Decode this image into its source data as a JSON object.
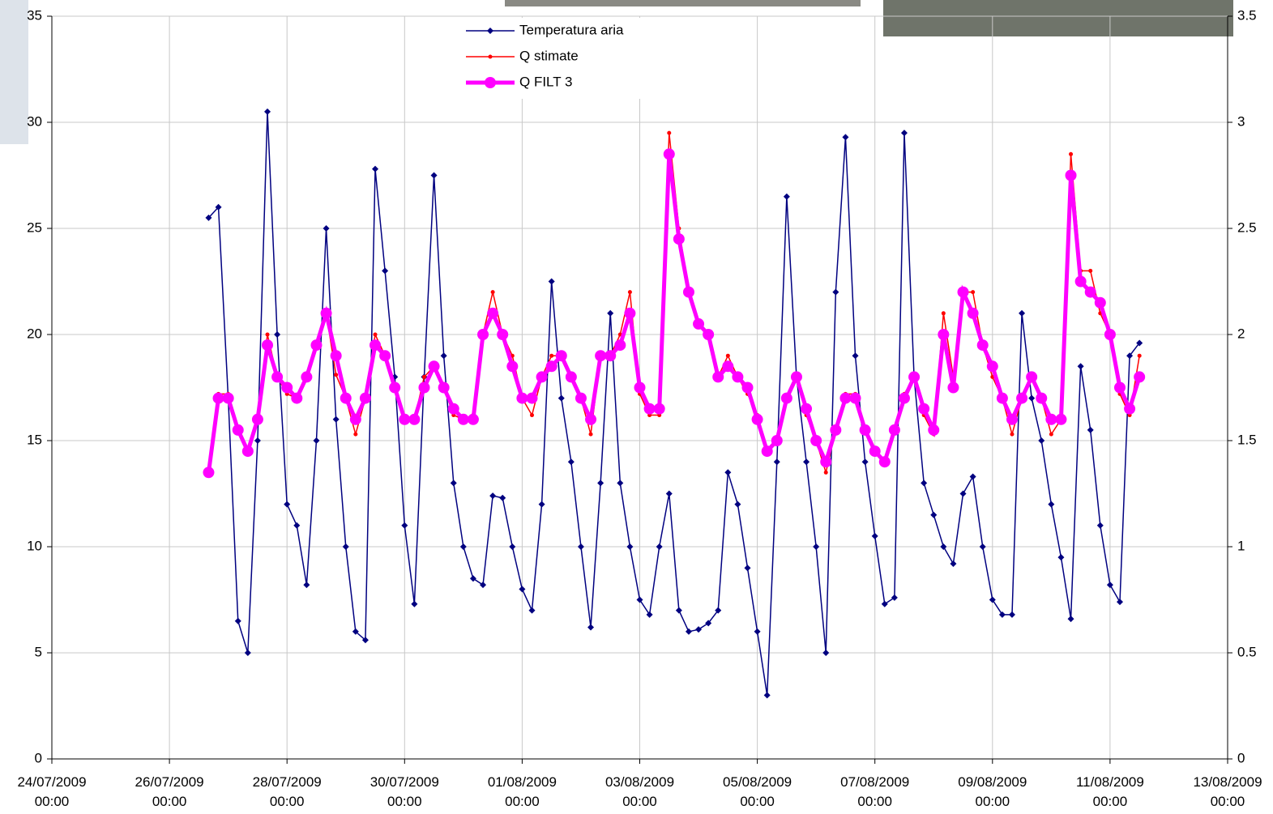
{
  "chart_data": {
    "type": "line",
    "x": [
      "2009-07-26T16:00",
      "2009-07-26T20:00",
      "2009-07-27T00:00",
      "2009-07-27T04:00",
      "2009-07-27T08:00",
      "2009-07-27T12:00",
      "2009-07-27T16:00",
      "2009-07-27T20:00",
      "2009-07-28T00:00",
      "2009-07-28T04:00",
      "2009-07-28T08:00",
      "2009-07-28T12:00",
      "2009-07-28T16:00",
      "2009-07-28T20:00",
      "2009-07-29T00:00",
      "2009-07-29T04:00",
      "2009-07-29T08:00",
      "2009-07-29T12:00",
      "2009-07-29T16:00",
      "2009-07-29T20:00",
      "2009-07-30T00:00",
      "2009-07-30T04:00",
      "2009-07-30T08:00",
      "2009-07-30T12:00",
      "2009-07-30T16:00",
      "2009-07-30T20:00",
      "2009-07-31T00:00",
      "2009-07-31T04:00",
      "2009-07-31T08:00",
      "2009-07-31T12:00",
      "2009-07-31T16:00",
      "2009-07-31T20:00",
      "2009-08-01T00:00",
      "2009-08-01T04:00",
      "2009-08-01T08:00",
      "2009-08-01T12:00",
      "2009-08-01T16:00",
      "2009-08-01T20:00",
      "2009-08-02T00:00",
      "2009-08-02T04:00",
      "2009-08-02T08:00",
      "2009-08-02T12:00",
      "2009-08-02T16:00",
      "2009-08-02T20:00",
      "2009-08-03T00:00",
      "2009-08-03T04:00",
      "2009-08-03T08:00",
      "2009-08-03T12:00",
      "2009-08-03T16:00",
      "2009-08-03T20:00",
      "2009-08-04T00:00",
      "2009-08-04T04:00",
      "2009-08-04T08:00",
      "2009-08-04T12:00",
      "2009-08-04T16:00",
      "2009-08-04T20:00",
      "2009-08-05T00:00",
      "2009-08-05T04:00",
      "2009-08-05T08:00",
      "2009-08-05T12:00",
      "2009-08-05T16:00",
      "2009-08-05T20:00",
      "2009-08-06T00:00",
      "2009-08-06T04:00",
      "2009-08-06T08:00",
      "2009-08-06T12:00",
      "2009-08-06T16:00",
      "2009-08-06T20:00",
      "2009-08-07T00:00",
      "2009-08-07T04:00",
      "2009-08-07T08:00",
      "2009-08-07T12:00",
      "2009-08-07T16:00",
      "2009-08-07T20:00",
      "2009-08-08T00:00",
      "2009-08-08T04:00",
      "2009-08-08T08:00",
      "2009-08-08T12:00",
      "2009-08-08T16:00",
      "2009-08-08T20:00",
      "2009-08-09T00:00",
      "2009-08-09T04:00",
      "2009-08-09T08:00",
      "2009-08-09T12:00",
      "2009-08-09T16:00",
      "2009-08-09T20:00",
      "2009-08-10T00:00",
      "2009-08-10T04:00",
      "2009-08-10T08:00",
      "2009-08-10T12:00",
      "2009-08-10T16:00",
      "2009-08-10T20:00",
      "2009-08-11T00:00",
      "2009-08-11T04:00",
      "2009-08-11T08:00",
      "2009-08-11T12:00"
    ],
    "series": [
      {
        "name": "Temperatura aria",
        "color": "#000080",
        "marker": "diamond",
        "values": [
          25.5,
          26.0,
          17,
          6.5,
          5.0,
          15,
          30.5,
          20,
          12,
          11,
          8.2,
          15,
          25,
          16,
          10,
          6,
          5.6,
          27.8,
          23,
          18,
          11,
          7.3,
          18,
          27.5,
          19,
          13,
          10,
          8.5,
          8.2,
          12.4,
          12.3,
          10,
          8,
          7,
          12,
          22.5,
          17,
          14,
          10,
          6.2,
          13,
          21,
          13,
          10,
          7.5,
          6.8,
          10,
          12.5,
          7,
          6,
          6.1,
          6.4,
          7,
          13.5,
          12,
          9,
          6,
          3,
          14,
          26.5,
          18,
          14,
          10,
          5,
          22,
          29.3,
          19,
          14,
          10.5,
          7.3,
          7.6,
          29.5,
          18,
          13,
          11.5,
          10,
          9.2,
          12.5,
          13.3,
          10,
          7.5,
          6.8,
          6.8,
          21,
          17,
          15,
          12,
          9.5,
          6.6,
          18.5,
          15.5,
          11,
          8.2,
          7.4,
          19,
          19.6
        ]
      },
      {
        "name": "Q stimate",
        "color": "#ff0000",
        "marker": "dot",
        "axis": "y2",
        "values": [
          1.35,
          1.72,
          1.72,
          1.54,
          1.44,
          1.6,
          2.0,
          1.8,
          1.72,
          1.7,
          1.8,
          1.95,
          2.1,
          1.81,
          1.7,
          1.53,
          1.7,
          2.0,
          1.9,
          1.75,
          1.6,
          1.6,
          1.8,
          1.85,
          1.75,
          1.62,
          1.6,
          1.62,
          2.0,
          2.2,
          2.0,
          1.9,
          1.7,
          1.62,
          1.8,
          1.9,
          1.9,
          1.8,
          1.7,
          1.53,
          1.9,
          1.9,
          2.0,
          2.2,
          1.72,
          1.62,
          1.62,
          2.95,
          2.5,
          2.2,
          2.05,
          2.0,
          1.8,
          1.9,
          1.8,
          1.72,
          1.62,
          1.45,
          1.5,
          1.7,
          1.8,
          1.62,
          1.5,
          1.35,
          1.55,
          1.72,
          1.72,
          1.55,
          1.45,
          1.4,
          1.55,
          1.72,
          1.8,
          1.62,
          1.53,
          2.1,
          1.8,
          2.2,
          2.2,
          1.95,
          1.8,
          1.7,
          1.53,
          1.7,
          1.8,
          1.7,
          1.53,
          1.6,
          2.85,
          2.3,
          2.3,
          2.1,
          2.0,
          1.72,
          1.62,
          1.9
        ]
      },
      {
        "name": "Q FILT 3",
        "color": "#ff00ff",
        "marker": "circle",
        "axis": "y2",
        "values": [
          1.35,
          1.7,
          1.7,
          1.55,
          1.45,
          1.6,
          1.95,
          1.8,
          1.75,
          1.7,
          1.8,
          1.95,
          2.1,
          1.9,
          1.7,
          1.6,
          1.7,
          1.95,
          1.9,
          1.75,
          1.6,
          1.6,
          1.75,
          1.85,
          1.75,
          1.65,
          1.6,
          1.6,
          2.0,
          2.1,
          2.0,
          1.85,
          1.7,
          1.7,
          1.8,
          1.85,
          1.9,
          1.8,
          1.7,
          1.6,
          1.9,
          1.9,
          1.95,
          2.1,
          1.75,
          1.65,
          1.65,
          2.85,
          2.45,
          2.2,
          2.05,
          2.0,
          1.8,
          1.85,
          1.8,
          1.75,
          1.6,
          1.45,
          1.5,
          1.7,
          1.8,
          1.65,
          1.5,
          1.4,
          1.55,
          1.7,
          1.7,
          1.55,
          1.45,
          1.4,
          1.55,
          1.7,
          1.8,
          1.65,
          1.55,
          2.0,
          1.75,
          2.2,
          2.1,
          1.95,
          1.85,
          1.7,
          1.6,
          1.7,
          1.8,
          1.7,
          1.6,
          1.6,
          2.75,
          2.25,
          2.2,
          2.15,
          2.0,
          1.75,
          1.65,
          1.8
        ]
      }
    ],
    "xlim": [
      "2009-07-24T00:00",
      "2009-08-13T00:00"
    ],
    "xticks": [
      {
        "value": "2009-07-24T00:00",
        "label": "24/07/2009 00:00"
      },
      {
        "value": "2009-07-26T00:00",
        "label": "26/07/2009 00:00"
      },
      {
        "value": "2009-07-28T00:00",
        "label": "28/07/2009 00:00"
      },
      {
        "value": "2009-07-30T00:00",
        "label": "30/07/2009 00:00"
      },
      {
        "value": "2009-08-01T00:00",
        "label": "01/08/2009 00:00"
      },
      {
        "value": "2009-08-03T00:00",
        "label": "03/08/2009 00:00"
      },
      {
        "value": "2009-08-05T00:00",
        "label": "05/08/2009 00:00"
      },
      {
        "value": "2009-08-07T00:00",
        "label": "07/08/2009 00:00"
      },
      {
        "value": "2009-08-09T00:00",
        "label": "09/08/2009 00:00"
      },
      {
        "value": "2009-08-11T00:00",
        "label": "11/08/2009 00:00"
      },
      {
        "value": "2009-08-13T00:00",
        "label": "13/08/2009 00:00"
      }
    ],
    "ylim": [
      0,
      35
    ],
    "yticks": [
      0,
      5,
      10,
      15,
      20,
      25,
      30,
      35
    ],
    "y2lim": [
      0,
      3.5
    ],
    "y2ticks": [
      0,
      0.5,
      1,
      1.5,
      2,
      2.5,
      3,
      3.5
    ],
    "grid": true,
    "legend": "top"
  }
}
